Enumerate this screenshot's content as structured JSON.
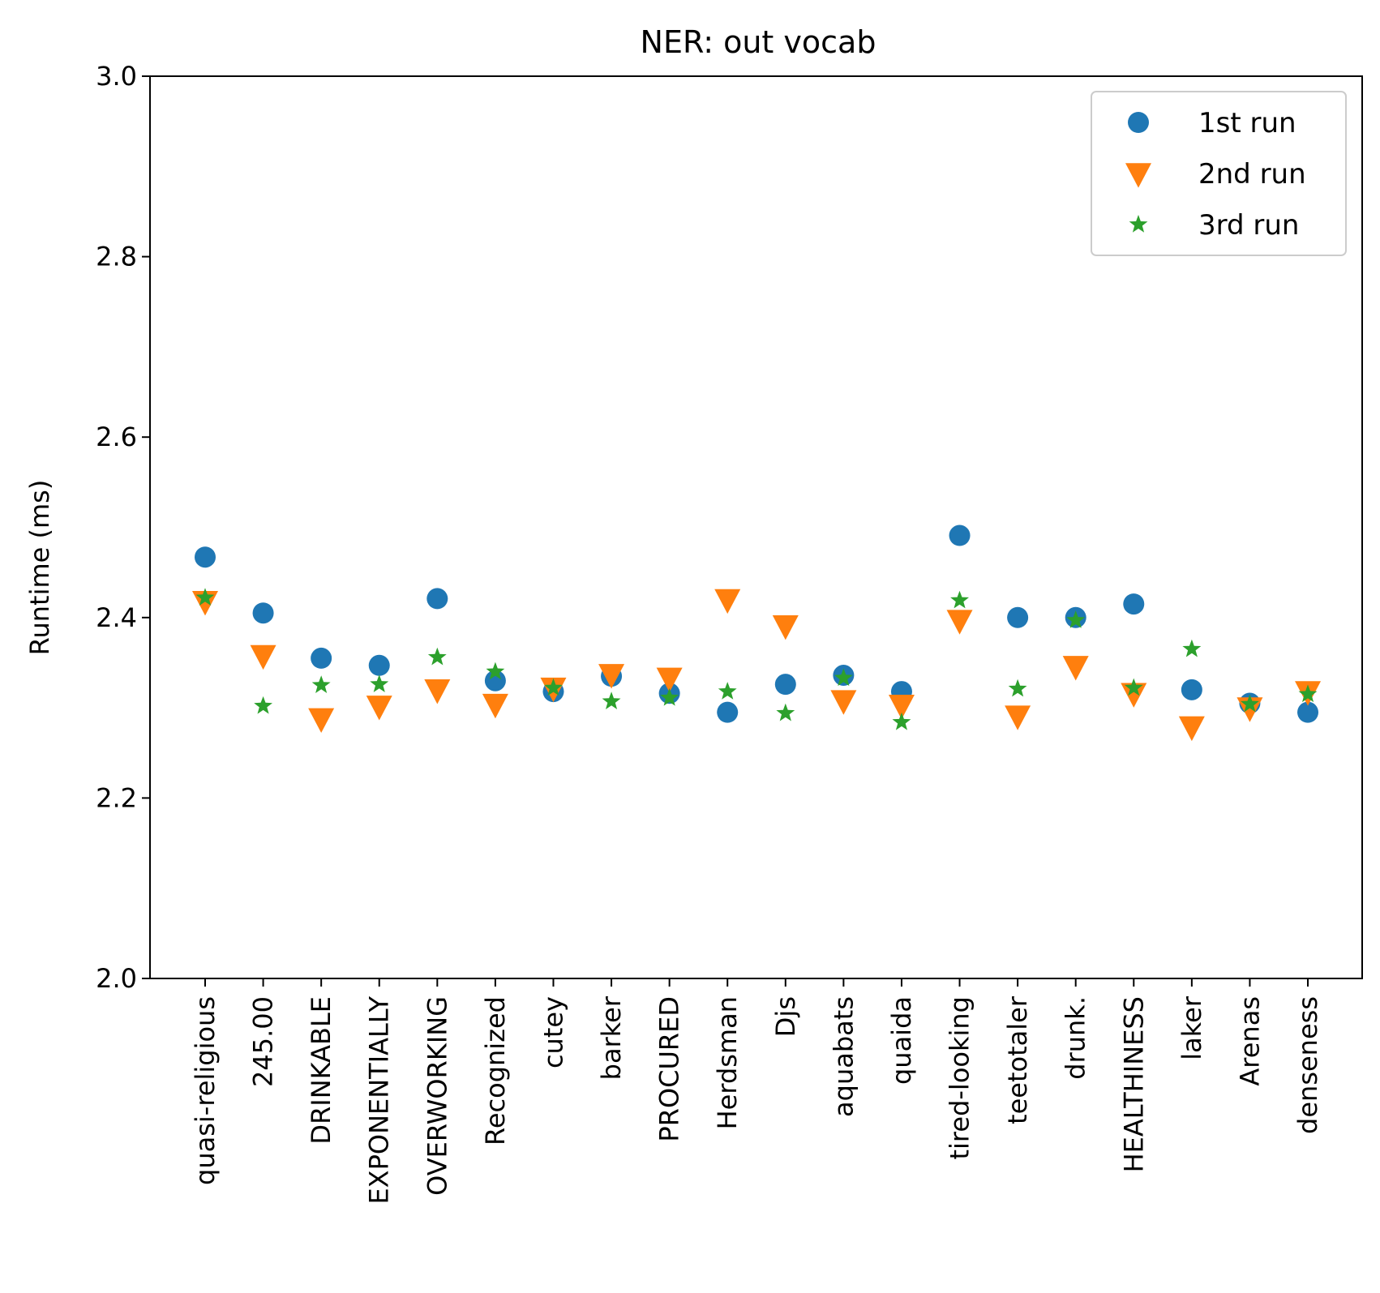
{
  "chart_data": {
    "type": "scatter",
    "title": "NER: out vocab",
    "xlabel": "",
    "ylabel": "Runtime (ms)",
    "ylim": [
      2.0,
      3.0
    ],
    "yticks": [
      "2.0",
      "2.2",
      "2.4",
      "2.6",
      "2.8",
      "3.0"
    ],
    "grid": false,
    "legend_position": "top-right",
    "categories": [
      "quasi-religious",
      "245.00",
      "DRINKABLE",
      "EXPONENTIALLY",
      "OVERWORKING",
      "Recognized",
      "cutey",
      "barker",
      "PROCURED",
      "Herdsman",
      "Djs",
      "aquabats",
      "quaida",
      "tired-looking",
      "teetotaler",
      "drunk.",
      "HEALTHINESS",
      "laker",
      "Arenas",
      "denseness"
    ],
    "series": [
      {
        "name": "1st run",
        "marker": "circle",
        "color": "#1f77b4",
        "values": [
          2.467,
          2.405,
          2.355,
          2.347,
          2.421,
          2.33,
          2.318,
          2.335,
          2.316,
          2.295,
          2.326,
          2.336,
          2.318,
          2.491,
          2.4,
          2.4,
          2.415,
          2.32,
          2.305,
          2.295
        ]
      },
      {
        "name": "2nd run",
        "marker": "triangle-down",
        "color": "#ff7f0e",
        "values": [
          2.418,
          2.358,
          2.288,
          2.302,
          2.32,
          2.304,
          2.322,
          2.337,
          2.333,
          2.42,
          2.391,
          2.308,
          2.303,
          2.397,
          2.291,
          2.346,
          2.316,
          2.279,
          2.3,
          2.318
        ]
      },
      {
        "name": "3rd run",
        "marker": "star",
        "color": "#2ca02c",
        "values": [
          2.422,
          2.302,
          2.325,
          2.326,
          2.356,
          2.34,
          2.322,
          2.307,
          2.311,
          2.318,
          2.294,
          2.333,
          2.284,
          2.419,
          2.321,
          2.397,
          2.322,
          2.365,
          2.304,
          2.315
        ]
      }
    ]
  }
}
